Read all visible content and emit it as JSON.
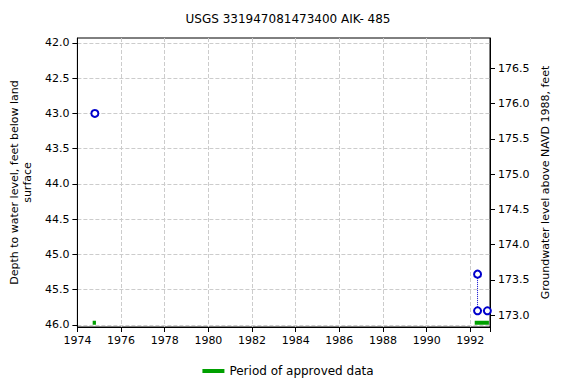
{
  "chart_data": {
    "type": "line",
    "title": "USGS 331947081473400 AIK- 485",
    "y_label": "Depth to water level, feet below land\nsurface",
    "y2_label": "Groundwater level above NAVD 1988, feet",
    "x": [
      1974.8,
      1992.33,
      1992.33,
      1992.33,
      1992.78
    ],
    "values": [
      43.0,
      null,
      45.28,
      45.8,
      45.8
    ],
    "color": "#0000cc",
    "marker": "open_circle",
    "line_style": "dotted",
    "approved_periods": {
      "name": "Period of approved data",
      "color": "#00a000",
      "y": 45.97,
      "ranges": [
        [
          1974.7,
          1974.85
        ],
        [
          1992.2,
          1992.85
        ]
      ]
    },
    "xlim": [
      1974,
      1992.9
    ],
    "xticks": [
      1974,
      1976,
      1978,
      1980,
      1982,
      1984,
      1986,
      1988,
      1990,
      1992
    ],
    "ylim": [
      41.93,
      46.03
    ],
    "yticks": [
      {
        "value": 42,
        "label": "42.0"
      },
      {
        "value": 42.5,
        "label": "42.5"
      },
      {
        "value": 43,
        "label": "43.0"
      },
      {
        "value": 43.5,
        "label": "43.5"
      },
      {
        "value": 44,
        "label": "44.0"
      },
      {
        "value": 44.5,
        "label": "44.5"
      },
      {
        "value": 45,
        "label": "45.0"
      },
      {
        "value": 45.5,
        "label": "45.5"
      },
      {
        "value": 46,
        "label": "46.0"
      }
    ],
    "y2lim": [
      172.83,
      176.93
    ],
    "y2ticks": [
      {
        "value": 173,
        "label": "173.0"
      },
      {
        "value": 173.5,
        "label": "173.5"
      },
      {
        "value": 174,
        "label": "174.0"
      },
      {
        "value": 174.5,
        "label": "174.5"
      },
      {
        "value": 175,
        "label": "175.0"
      },
      {
        "value": 175.5,
        "label": "175.5"
      },
      {
        "value": 176,
        "label": "176.0"
      },
      {
        "value": 176.5,
        "label": "176.5"
      }
    ],
    "grid": true,
    "legend": "bottom"
  }
}
